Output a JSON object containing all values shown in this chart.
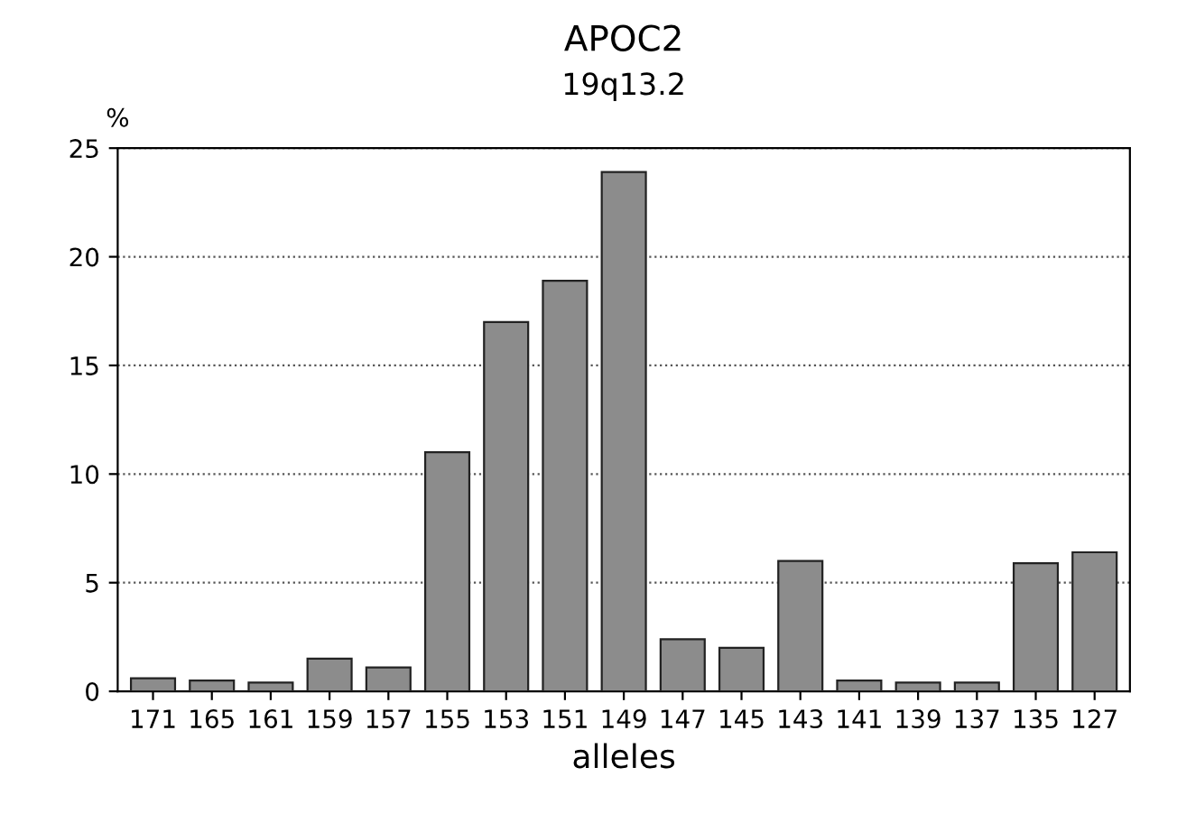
{
  "chart_data": {
    "type": "bar",
    "title": "APOC2",
    "subtitle": "19q13.2",
    "xlabel": "alleles",
    "ylabel": "%",
    "categories": [
      "171",
      "165",
      "161",
      "159",
      "157",
      "155",
      "153",
      "151",
      "149",
      "147",
      "145",
      "143",
      "141",
      "139",
      "137",
      "135",
      "127"
    ],
    "values": [
      0.6,
      0.5,
      0.4,
      1.5,
      1.1,
      11.0,
      17.0,
      18.9,
      23.9,
      2.4,
      2.0,
      6.0,
      0.5,
      0.4,
      0.4,
      5.9,
      6.4
    ],
    "color": "#8c8c8c",
    "ylim": [
      0,
      25
    ],
    "yticks": [
      0,
      5,
      10,
      15,
      20,
      25
    ],
    "grid": "y"
  }
}
